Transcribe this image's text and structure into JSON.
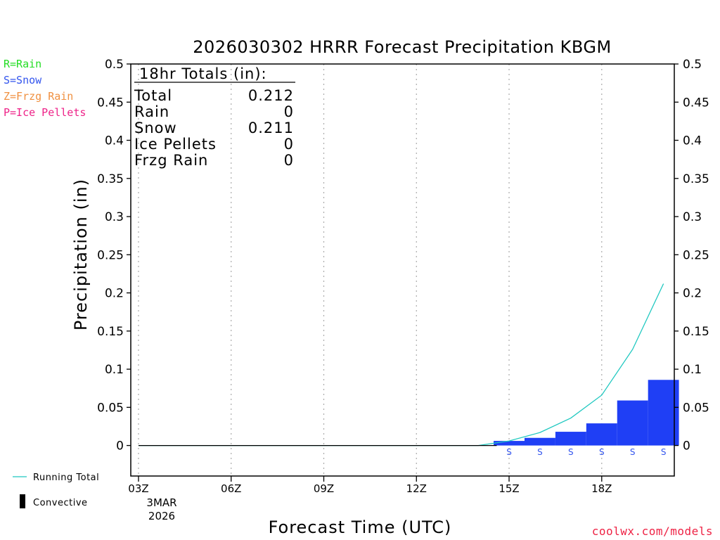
{
  "chart_data": {
    "type": "bar",
    "title": "2026030302 HRRR Forecast Precipitation KBGM",
    "ylabel": "Precipitation (in)",
    "xlabel": "Forecast Time (UTC)",
    "ylim": [
      -0.04,
      0.5
    ],
    "y_ticks": [
      0,
      0.05,
      0.1,
      0.15,
      0.2,
      0.25,
      0.3,
      0.35,
      0.4,
      0.45,
      0.5
    ],
    "y_tick_labels": [
      "0",
      "0.05",
      "0.1",
      "0.15",
      "0.2",
      "0.25",
      "0.3",
      "0.35",
      "0.4",
      "0.45",
      "0.5"
    ],
    "xlim": [
      2.75,
      20.35
    ],
    "x_ticks": [
      3,
      6,
      9,
      12,
      15,
      18
    ],
    "x_tick_labels": [
      "03Z",
      "06Z",
      "09Z",
      "12Z",
      "15Z",
      "18Z"
    ],
    "x_date_labels": [
      "3MAR",
      "2026"
    ],
    "grid": "vertical dotted",
    "hours": [
      3,
      4,
      5,
      6,
      7,
      8,
      9,
      10,
      11,
      12,
      13,
      14,
      15,
      16,
      17,
      18,
      19,
      20
    ],
    "series": [
      {
        "name": "Running Total",
        "type": "line",
        "color": "#1fc8c0",
        "values": [
          0,
          0,
          0,
          0,
          0,
          0,
          0,
          0,
          0,
          0,
          0,
          0,
          0.006,
          0.017,
          0.036,
          0.066,
          0.126,
          0.212
        ]
      },
      {
        "type": "bar",
        "color": "#1f3ff5",
        "values": [
          0,
          0,
          0,
          0,
          0,
          0,
          0,
          0,
          0,
          0,
          0,
          0,
          0.006,
          0.01,
          0.018,
          0.029,
          0.059,
          0.086
        ]
      }
    ],
    "ptype_markers": [
      {
        "hour": 15,
        "label": "S"
      },
      {
        "hour": 16,
        "label": "S"
      },
      {
        "hour": 17,
        "label": "S"
      },
      {
        "hour": 18,
        "label": "S"
      },
      {
        "hour": 19,
        "label": "S"
      },
      {
        "hour": 20,
        "label": "S"
      }
    ],
    "ptype_legend": [
      {
        "label": "R=Rain",
        "color": "#22dd22"
      },
      {
        "label": "S=Snow",
        "color": "#3355ee"
      },
      {
        "label": "Z=Frzg Rain",
        "color": "#f09040"
      },
      {
        "label": "P=Ice Pellets",
        "color": "#ee2288"
      }
    ],
    "totals_box": {
      "header": "18hr Totals (in):",
      "rows": [
        {
          "label": "Total",
          "value": "0.212"
        },
        {
          "label": "Rain",
          "value": "0"
        },
        {
          "label": "Snow",
          "value": "0.211"
        },
        {
          "label": "Ice Pellets",
          "value": "0"
        },
        {
          "label": "Frzg Rain",
          "value": "0"
        }
      ]
    },
    "legend": {
      "running_total_label": "Running Total",
      "convective_label": "Convective"
    },
    "credit": "coolwx.com/models",
    "colors": {
      "snow_marker": "#3355ee",
      "credit": "#ee2244",
      "grid": "#aaaaaa"
    }
  }
}
